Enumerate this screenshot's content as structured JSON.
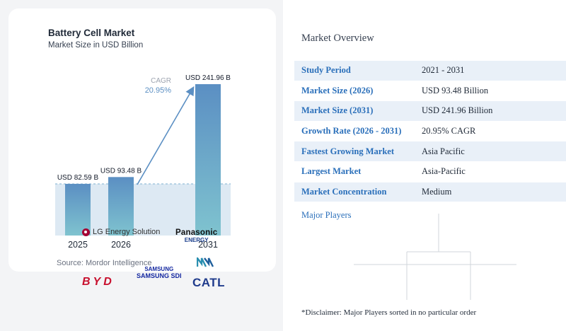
{
  "chart": {
    "title": "Battery Cell Market",
    "subtitle": "Market Size in USD Billion",
    "source": "Source:  Mordor Intelligence",
    "cagr_label": "CAGR",
    "cagr_value": "20.95%"
  },
  "chart_data": {
    "type": "bar",
    "categories": [
      "2025",
      "2026",
      "2031"
    ],
    "values": [
      82.59,
      93.48,
      241.96
    ],
    "data_labels": [
      "USD 82.59 B",
      "USD 93.48 B",
      "USD 241.96 B"
    ],
    "title": "Battery Cell Market",
    "subtitle": "Market Size in USD Billion",
    "ylim": [
      0,
      241.96
    ],
    "grid": false,
    "annotation": "CAGR 20.95%",
    "colors": {
      "bar_top": "#5b8fc3",
      "bar_bottom": "#7fc3cf",
      "band": "#dde9f3",
      "arrow": "#5b8fc3"
    }
  },
  "overview": {
    "title": "Market Overview",
    "rows": [
      {
        "label": "Study Period",
        "value": "2021 - 2031"
      },
      {
        "label": "Market Size (2026)",
        "value": "USD 93.48 Billion"
      },
      {
        "label": "Market Size (2031)",
        "value": "USD 241.96 Billion"
      },
      {
        "label": "Growth Rate (2026 - 2031)",
        "value": "20.95% CAGR"
      },
      {
        "label": "Fastest Growing Market",
        "value": "Asia Pacific"
      },
      {
        "label": "Largest Market",
        "value": "Asia-Pacific"
      },
      {
        "label": "Market Concentration",
        "value": "Medium"
      }
    ]
  },
  "players": {
    "title": "Major Players",
    "lg": "LG Energy Solution",
    "panasonic": "Panasonic",
    "panasonic_sub": "ENERGY",
    "byd": "BYD",
    "samsung": "SAMSUNG",
    "samsung_sub": "SAMSUNG SDI",
    "catl": "CATL"
  },
  "disclaimer": "*Disclaimer: Major Players sorted in no particular order"
}
